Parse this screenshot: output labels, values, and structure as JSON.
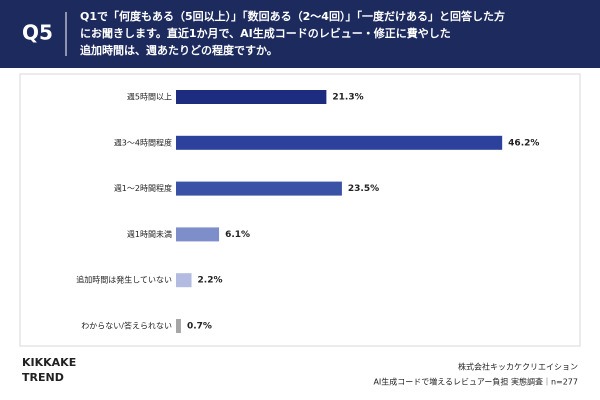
{
  "chart_data": {
    "type": "bar",
    "orientation": "horizontal",
    "question_label": "Q5",
    "title_lines": [
      "Q1で「何度もある（5回以上）」「数回ある（2～4回）」「一度だけある」と回答した方",
      "にお聞きします。直近1か月で、AI生成コードのレビュー・修正に費やした",
      "追加時間は、週あたりどの程度ですか。"
    ],
    "categories": [
      "週5時間以上",
      "週3～4時間程度",
      "週1～2時間程度",
      "週1時間未満",
      "追加時間は発生していない",
      "わからない/答えられない"
    ],
    "values": [
      21.3,
      46.2,
      23.5,
      6.1,
      2.2,
      0.7
    ],
    "value_labels": [
      "21.3%",
      "46.2%",
      "23.5%",
      "6.1%",
      "2.2%",
      "0.7%"
    ],
    "colors": [
      "#1d2c7e",
      "#2c419b",
      "#3a52a6",
      "#7d8ecb",
      "#b3bce0",
      "#a6a6a6"
    ]
  },
  "footer": {
    "logo_top": "KIKKAKE",
    "logo_bottom": "TREND",
    "source_lines": [
      "株式会社キッカケクリエイション",
      "AI生成コードで増えるレビュアー負担 実態調査｜n=277"
    ]
  }
}
